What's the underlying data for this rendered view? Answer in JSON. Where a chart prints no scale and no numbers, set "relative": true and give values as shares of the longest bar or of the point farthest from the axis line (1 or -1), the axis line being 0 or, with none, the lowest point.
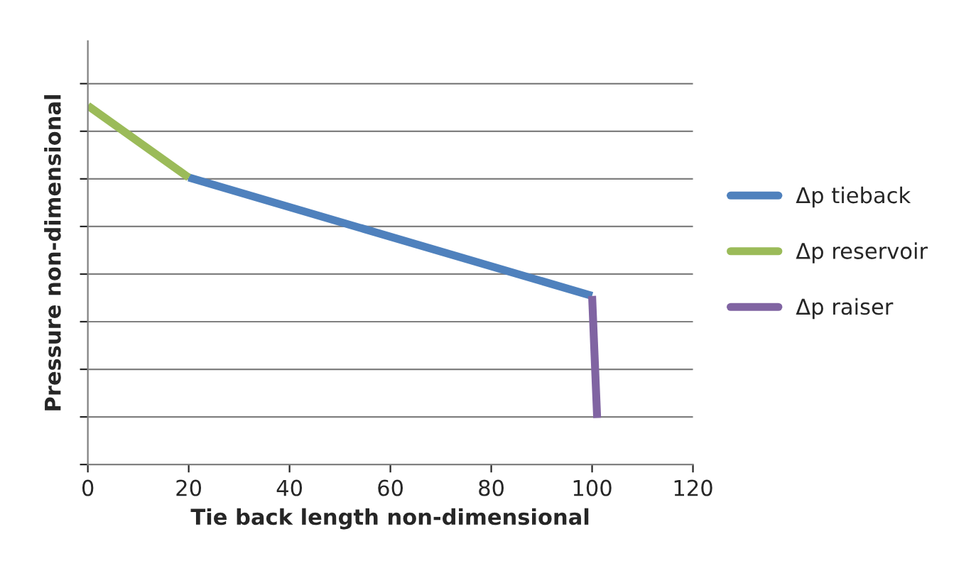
{
  "chart_data": {
    "type": "line",
    "xlabel": "Tie back length non-dimensional",
    "ylabel": "Pressure non-dimensional",
    "relative": true,
    "xlim": [
      0,
      120
    ],
    "xticks": [
      0,
      20,
      40,
      60,
      80,
      100,
      120
    ],
    "grid": "y",
    "legend": "right",
    "marker": "none",
    "line_style": "solid",
    "series": [
      {
        "name": "Δp tieback",
        "color": "#4f81bd",
        "x": [
          20,
          100
        ],
        "values": [
          0.8,
          0.47
        ]
      },
      {
        "name": "Δp reservoir",
        "color": "#9bbb59",
        "x": [
          0,
          20
        ],
        "values": [
          1.0,
          0.8
        ]
      },
      {
        "name": "Δp raiser",
        "color": "#8064a2",
        "x": [
          100,
          101
        ],
        "values": [
          0.47,
          0.13
        ]
      }
    ]
  }
}
